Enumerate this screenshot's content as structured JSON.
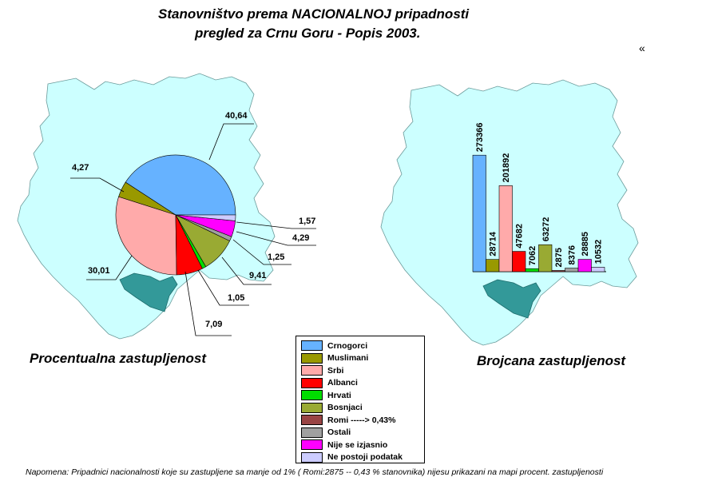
{
  "page": {
    "title_line1": "Stanovništvo prema NACIONALNOJ pripadnosti",
    "title_line2": "pregled za Crnu Goru - Popis 2003.",
    "corner_mark": "«",
    "footnote": "Napomena: Pripadnici nacionalnosti koje su zastupljene sa manje od 1%  (  Romi:2875 -- 0,43 % stanovnika) nijesu prikazani na mapi procent. zastupljenosti"
  },
  "colors": {
    "map_fill": "#ccffff",
    "map_stroke": "#6a9a9a",
    "lake_fill": "#339999"
  },
  "legend": [
    {
      "label": "Crnogorci",
      "color": "#66b2ff"
    },
    {
      "label": "Muslimani",
      "color": "#999900"
    },
    {
      "label": "Srbi",
      "color": "#ffaaaa"
    },
    {
      "label": "Albanci",
      "color": "#ff0000"
    },
    {
      "label": "Hrvati",
      "color": "#00dd00"
    },
    {
      "label": "Bosnjaci",
      "color": "#99aa33"
    },
    {
      "label": "Romi -----> 0,43%",
      "color": "#994444"
    },
    {
      "label": "Ostali",
      "color": "#a0a0a0"
    },
    {
      "label": "Nije se  izjasnio",
      "color": "#ff00ff"
    },
    {
      "label": "Ne postoji podatak",
      "color": "#ccccff"
    }
  ],
  "chart_data": [
    {
      "type": "pie",
      "subtitle": "Procentualna zastupljenost",
      "labels": [
        "Crnogorci",
        "Muslimani",
        "Srbi",
        "Albanci",
        "Hrvati",
        "Bosnjaci",
        "Ostali",
        "Nije se  izjasnio",
        "Ne postoji podatak"
      ],
      "values": [
        40.64,
        4.27,
        30.01,
        7.09,
        1.05,
        9.41,
        1.25,
        4.29,
        1.57
      ],
      "value_labels": [
        "40,64",
        "4,27",
        "30,01",
        "7,09",
        "1,05",
        "9,41",
        "1,25",
        "4,29",
        "1,57"
      ],
      "colors": [
        "#66b2ff",
        "#999900",
        "#ffaaaa",
        "#ff0000",
        "#00dd00",
        "#99aa33",
        "#a0a0a0",
        "#ff00ff",
        "#ccccff"
      ]
    },
    {
      "type": "bar",
      "subtitle": "Brojcana zastupljenost",
      "categories": [
        "Crnogorci",
        "Muslimani",
        "Srbi",
        "Albanci",
        "Hrvati",
        "Bosnjaci",
        "Romi",
        "Ostali",
        "Nije se  izjasnio",
        "Ne postoji podatak"
      ],
      "values": [
        273366,
        28714,
        201892,
        47682,
        7062,
        63272,
        2875,
        8376,
        28885,
        10532
      ],
      "colors": [
        "#66b2ff",
        "#999900",
        "#ffaaaa",
        "#ff0000",
        "#00dd00",
        "#99aa33",
        "#994444",
        "#a0a0a0",
        "#ff00ff",
        "#ccccff"
      ],
      "ylim": [
        0,
        300000
      ]
    }
  ]
}
